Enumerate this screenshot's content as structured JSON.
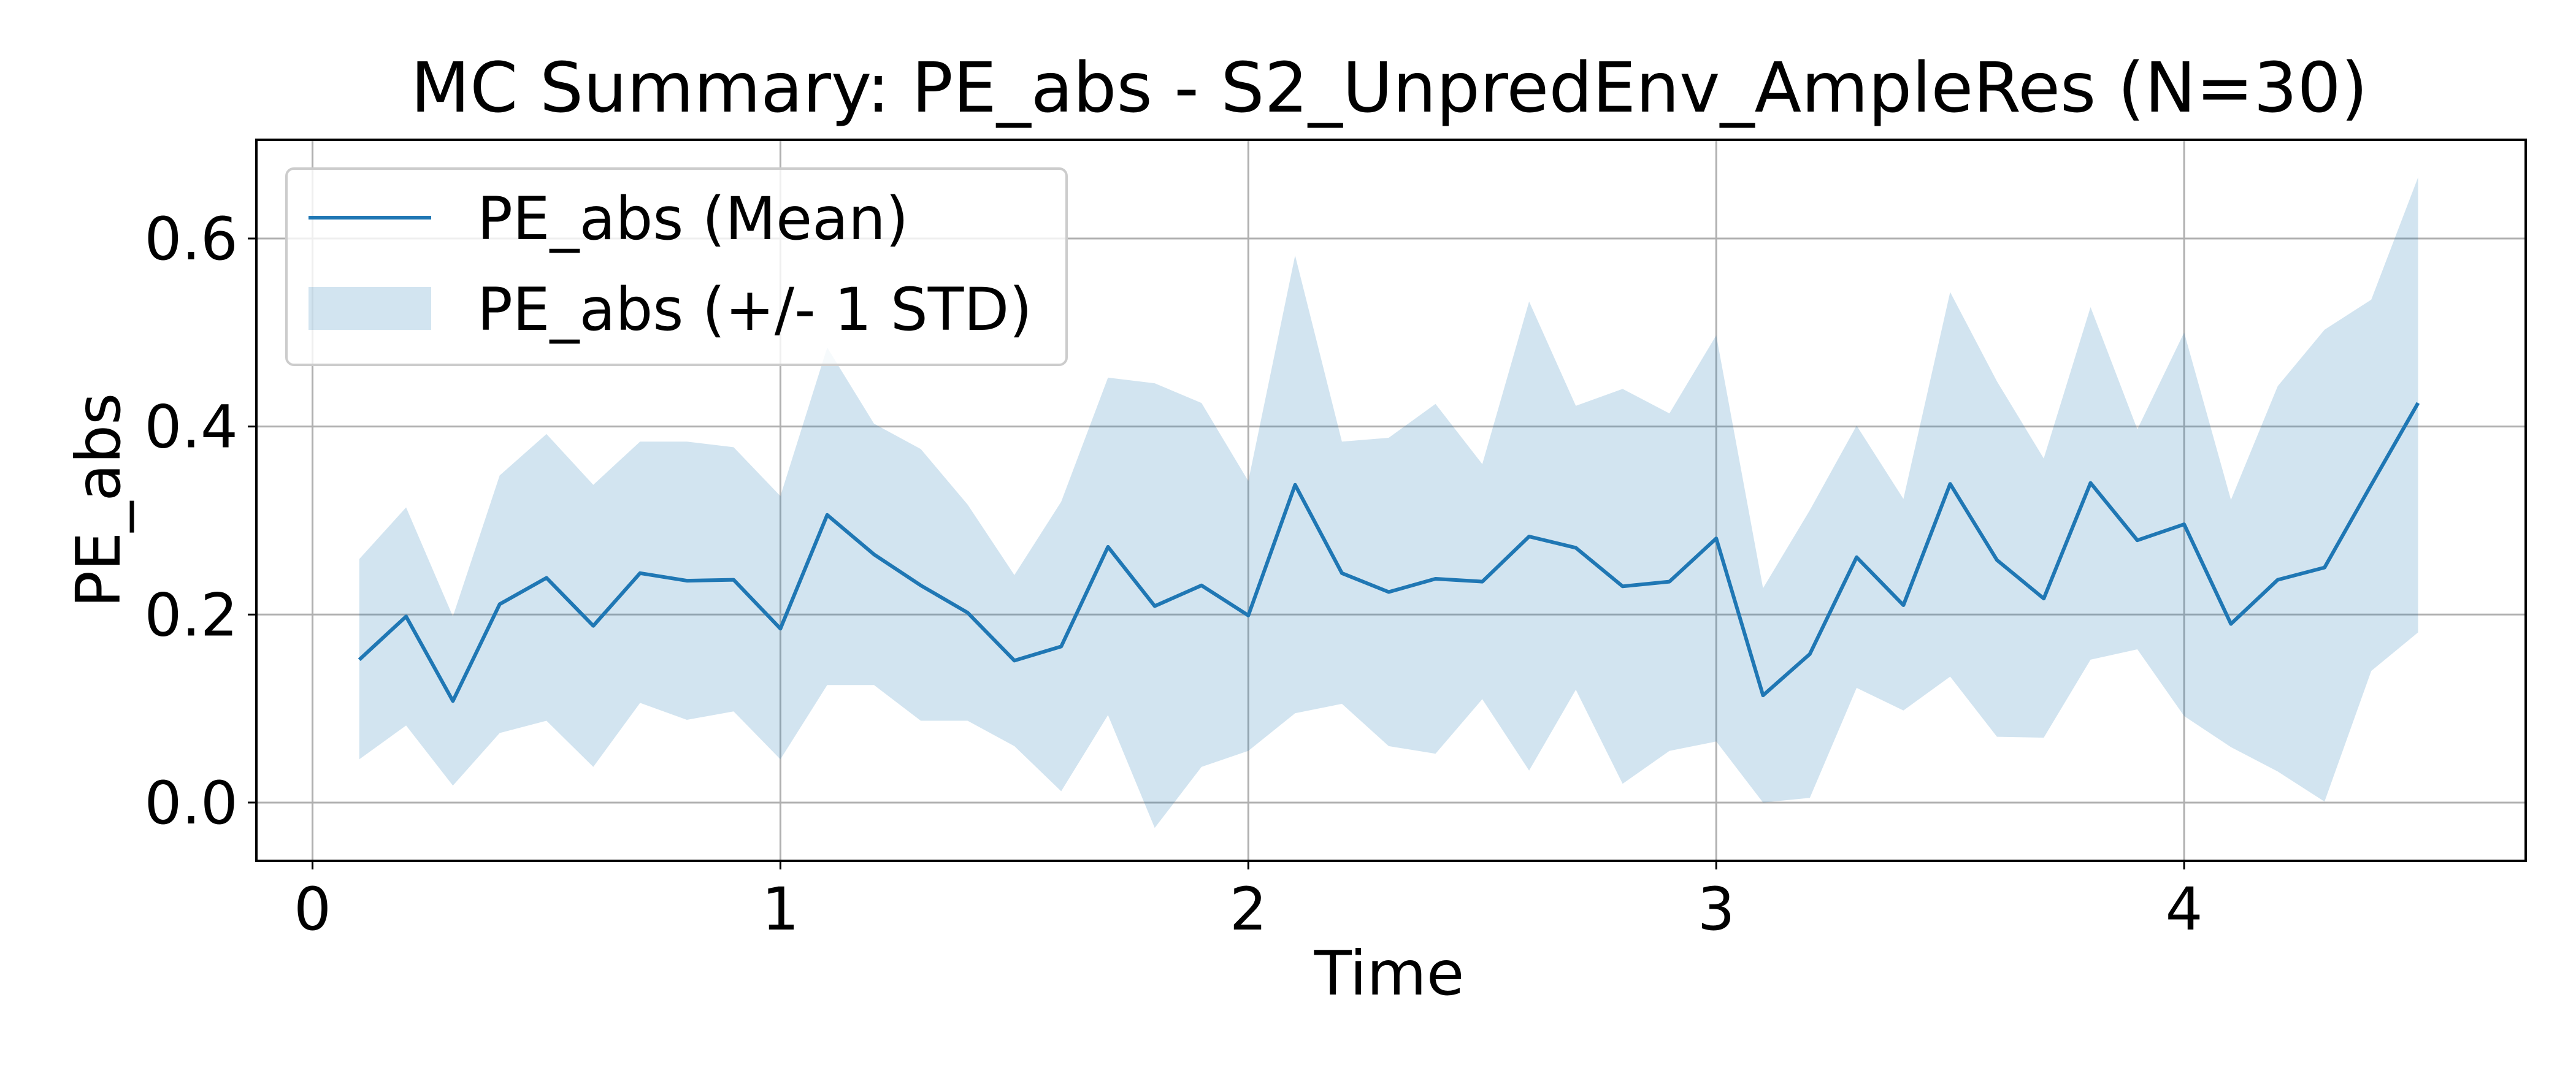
{
  "chart_data": {
    "type": "line",
    "title": "MC Summary: PE_abs - S2_UnpredEnv_AmpleRes (N=30)",
    "xlabel": "Time",
    "ylabel": "PE_abs",
    "xlim": [
      -0.12,
      4.73
    ],
    "ylim": [
      -0.062,
      0.705
    ],
    "xticks": [
      0,
      1,
      2,
      3,
      4
    ],
    "xtick_labels": [
      "0",
      "1",
      "2",
      "3",
      "4"
    ],
    "yticks": [
      0.0,
      0.2,
      0.4,
      0.6
    ],
    "ytick_labels": [
      "0.0",
      "0.2",
      "0.4",
      "0.6"
    ],
    "grid": true,
    "legend_position": "upper-left",
    "colors": {
      "line": "#1f77b4",
      "band": "#1f77b4",
      "band_opacity": 0.2,
      "grid": "#b0b0b0"
    },
    "x": [
      0.1,
      0.2,
      0.3,
      0.4,
      0.5,
      0.6,
      0.7,
      0.8,
      0.9,
      1.0,
      1.1,
      1.2,
      1.3,
      1.4,
      1.5,
      1.6,
      1.7,
      1.8,
      1.9,
      2.0,
      2.1,
      2.2,
      2.3,
      2.4,
      2.5,
      2.6,
      2.7,
      2.8,
      2.9,
      3.0,
      3.1,
      3.2,
      3.3,
      3.4,
      3.5,
      3.6,
      3.7,
      3.8,
      3.9,
      4.0,
      4.1,
      4.2,
      4.3,
      4.4,
      4.5
    ],
    "series": [
      {
        "name": "PE_abs (Mean)",
        "kind": "line",
        "values": [
          0.152,
          0.198,
          0.108,
          0.211,
          0.239,
          0.188,
          0.244,
          0.236,
          0.237,
          0.185,
          0.306,
          0.264,
          0.231,
          0.202,
          0.151,
          0.166,
          0.272,
          0.209,
          0.231,
          0.199,
          0.338,
          0.244,
          0.224,
          0.238,
          0.235,
          0.283,
          0.271,
          0.23,
          0.235,
          0.281,
          0.114,
          0.158,
          0.261,
          0.21,
          0.339,
          0.258,
          0.217,
          0.34,
          0.279,
          0.296,
          0.19,
          0.237,
          0.25,
          0.338,
          0.425
        ]
      },
      {
        "name": "PE_abs (+/- 1 STD)",
        "kind": "band",
        "upper": [
          0.259,
          0.314,
          0.198,
          0.348,
          0.392,
          0.338,
          0.384,
          0.384,
          0.378,
          0.326,
          0.484,
          0.403,
          0.376,
          0.317,
          0.242,
          0.32,
          0.452,
          0.446,
          0.425,
          0.342,
          0.582,
          0.384,
          0.388,
          0.424,
          0.36,
          0.533,
          0.422,
          0.44,
          0.414,
          0.497,
          0.228,
          0.311,
          0.401,
          0.323,
          0.543,
          0.448,
          0.366,
          0.527,
          0.397,
          0.5,
          0.322,
          0.443,
          0.503,
          0.535,
          0.665
        ],
        "lower": [
          0.046,
          0.082,
          0.018,
          0.074,
          0.087,
          0.038,
          0.106,
          0.088,
          0.097,
          0.046,
          0.125,
          0.125,
          0.087,
          0.087,
          0.06,
          0.012,
          0.093,
          -0.027,
          0.038,
          0.055,
          0.095,
          0.105,
          0.06,
          0.052,
          0.11,
          0.034,
          0.12,
          0.02,
          0.055,
          0.065,
          0.0,
          0.005,
          0.122,
          0.098,
          0.134,
          0.07,
          0.069,
          0.152,
          0.163,
          0.092,
          0.059,
          0.033,
          0.001,
          0.14,
          0.181
        ]
      }
    ]
  }
}
